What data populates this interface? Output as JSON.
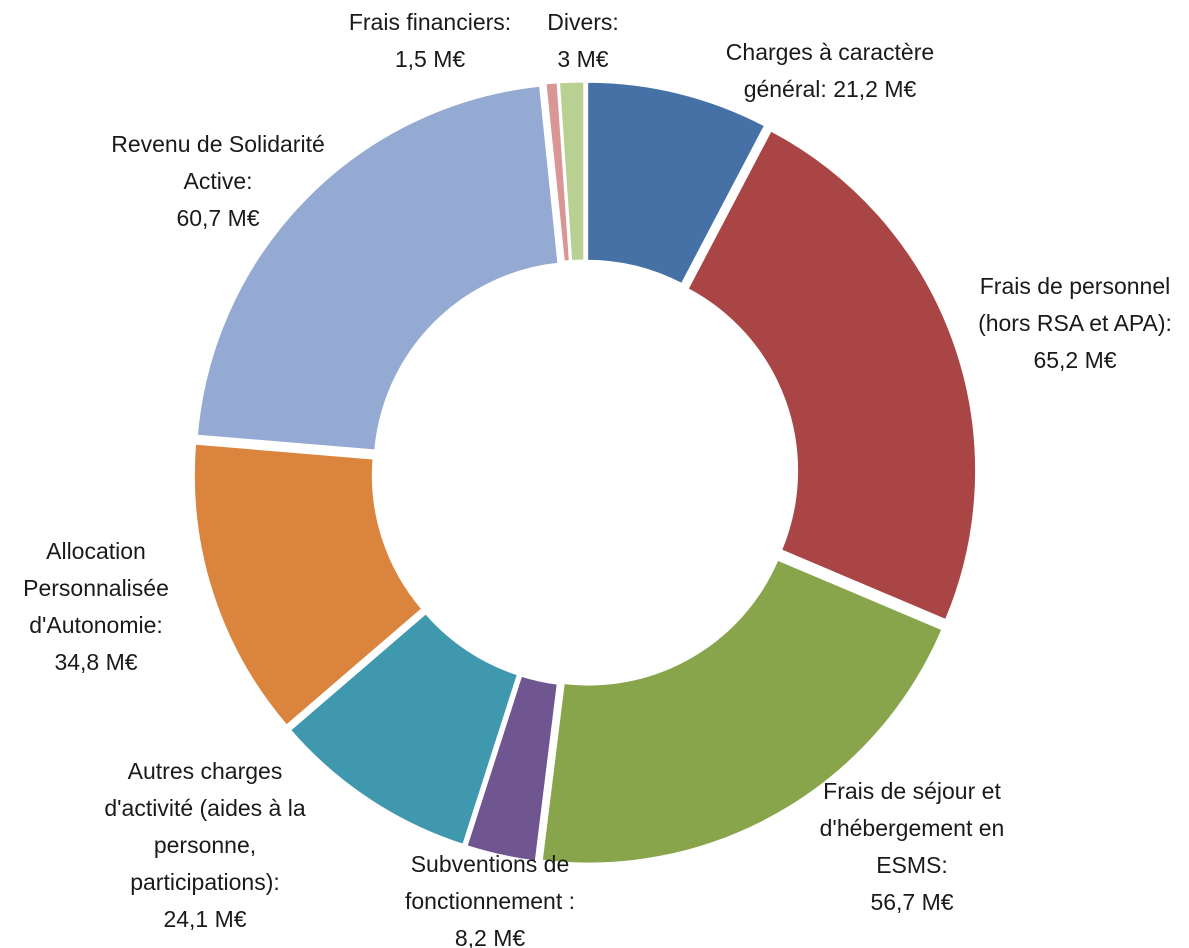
{
  "chart_data": {
    "type": "donut",
    "categories": [
      "Charges à caractère général:",
      "Frais de personnel (hors RSA et APA):",
      "Frais de séjour et d'hébergement en ESMS:",
      "Subventions de fonctionnement :",
      "Autres charges d'activité (aides à la personne, participations):",
      "Allocation Personnalisée d'Autonomie:",
      "Revenu de Solidarité Active:",
      "Frais financiers:",
      "Divers:"
    ],
    "values": [
      21.2,
      65.2,
      56.7,
      8.2,
      24.1,
      34.8,
      60.7,
      1.5,
      3
    ],
    "value_labels": [
      "21,2 M€",
      "65,2 M€",
      "56,7 M€",
      "8,2 M€",
      "24,1 M€",
      "34,8 M€",
      "60,7 M€",
      "1,5 M€",
      "3 M€"
    ],
    "colors": [
      "#4571a6",
      "#a94645",
      "#88a54c",
      "#6f5690",
      "#3f98ae",
      "#da843d",
      "#95aad2",
      "#d99695",
      "#b9d093"
    ]
  }
}
